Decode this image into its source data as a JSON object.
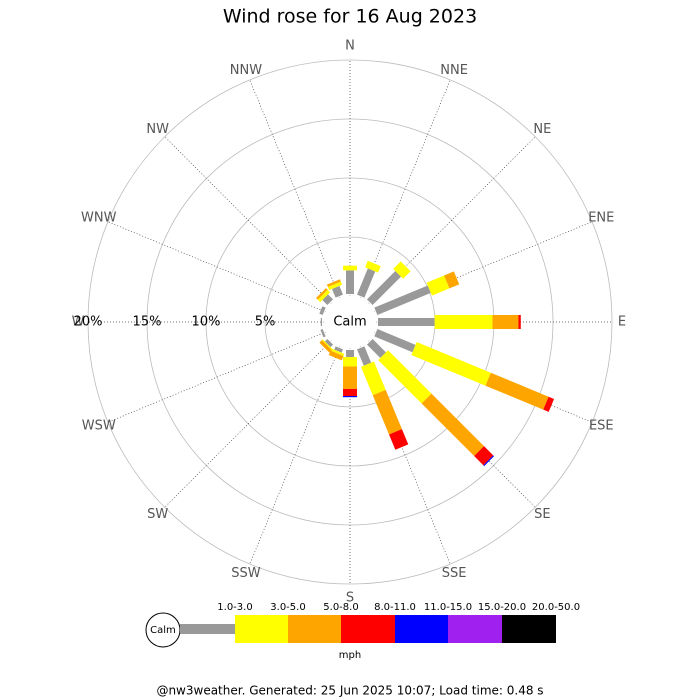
{
  "chart_data": {
    "type": "windrose",
    "title": "Wind rose for 16 Aug 2023",
    "calm_label": "Calm",
    "directions": [
      "N",
      "NNE",
      "NE",
      "ENE",
      "E",
      "ESE",
      "SE",
      "SSE",
      "S",
      "SSW",
      "SW",
      "WSW",
      "W",
      "WNW",
      "NW",
      "NNW"
    ],
    "rlim": [
      0,
      20
    ],
    "rticks": [
      {
        "value": 5,
        "label": "5%"
      },
      {
        "value": 10,
        "label": "10%"
      },
      {
        "value": 15,
        "label": "15%"
      },
      {
        "value": 20,
        "label": "20%"
      }
    ],
    "units": "mph",
    "series": [
      {
        "name": "1.0-3.0",
        "color": "#999999",
        "values": [
          2.0,
          2.4,
          3.4,
          4.9,
          4.8,
          3.5,
          1.6,
          1.5,
          0.6,
          0.3,
          0.3,
          0.2,
          0.1,
          0.3,
          0.6,
          0.8
        ]
      },
      {
        "name": "3.0-5.0",
        "color": "#ffff00",
        "values": [
          0.4,
          0.6,
          0.9,
          1.6,
          4.9,
          6.8,
          5.2,
          2.6,
          0.8,
          0.2,
          0.1,
          0,
          0,
          0,
          0.3,
          0.3
        ]
      },
      {
        "name": "5.0-8.0",
        "color": "#ffa500",
        "values": [
          0,
          0,
          0,
          0.9,
          2.2,
          5.3,
          6.3,
          3.6,
          1.9,
          0.4,
          0.3,
          0,
          0,
          0,
          0.2,
          0.2
        ]
      },
      {
        "name": "8.0-11.0",
        "color": "#ff0000",
        "values": [
          0,
          0,
          0,
          0,
          0.2,
          0.5,
          1.1,
          1.4,
          0.6,
          0,
          0,
          0,
          0,
          0,
          0,
          0
        ]
      },
      {
        "name": "11.0-15.0",
        "color": "#0000ff",
        "values": [
          0,
          0,
          0,
          0,
          0,
          0,
          0.1,
          0,
          0.1,
          0,
          0,
          0,
          0,
          0,
          0,
          0
        ]
      },
      {
        "name": "15.0-20.0",
        "color": "#a020f0",
        "values": [
          0,
          0,
          0,
          0,
          0,
          0,
          0,
          0,
          0,
          0,
          0,
          0,
          0,
          0,
          0,
          0
        ]
      },
      {
        "name": "20.0-50.0",
        "color": "#000000",
        "values": [
          0,
          0,
          0,
          0,
          0,
          0,
          0,
          0,
          0,
          0,
          0,
          0,
          0,
          0,
          0,
          0
        ]
      }
    ],
    "footer": "@nw3weather. Generated: 25 Jun 2025 10:07; Load time: 0.48 s"
  }
}
